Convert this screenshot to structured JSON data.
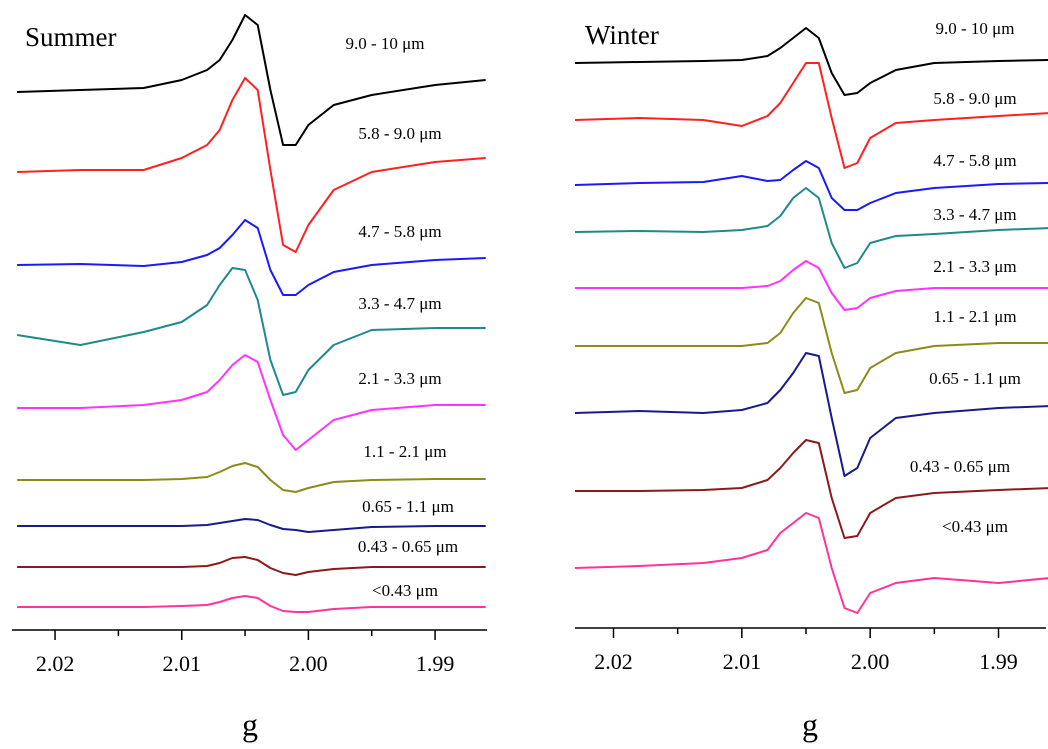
{
  "chart_data": [
    {
      "type": "line",
      "title": "Summer",
      "xlabel": "g",
      "x": [
        2.023,
        2.018,
        2.013,
        2.01,
        2.008,
        2.007,
        2.006,
        2.005,
        2.004,
        2.003,
        2.002,
        2.001,
        2.0,
        1.998,
        1.995,
        1.99,
        1.986
      ],
      "xlim": [
        2.0234,
        1.9859
      ],
      "xticks": [
        2.02,
        2.01,
        {
          "value": 2,
          "label": "2.00"
        },
        1.99
      ],
      "xminorticks": [
        2.015,
        2.005,
        1.995
      ],
      "ylim": [
        0,
        620
      ],
      "series": [
        {
          "name": "9.0 - 10 μm",
          "color": "#000000",
          "values": [
            538,
            540,
            542,
            550,
            560,
            570,
            590,
            615,
            605,
            540,
            485,
            485,
            505,
            525,
            535,
            545,
            550
          ]
        },
        {
          "name": "5.8 - 9.0 μm",
          "color": "#ff2020",
          "values": [
            458,
            460,
            460,
            472,
            485,
            500,
            530,
            552,
            540,
            460,
            385,
            378,
            405,
            440,
            458,
            468,
            472
          ]
        },
        {
          "name": "4.7 - 5.8 μm",
          "color": "#1a1aff",
          "values": [
            365,
            366,
            364,
            368,
            375,
            382,
            395,
            410,
            402,
            360,
            335,
            335,
            345,
            358,
            365,
            370,
            372
          ]
        },
        {
          "name": "3.3 - 4.7 μm",
          "color": "#1f8a8a",
          "values": [
            295,
            285,
            298,
            308,
            325,
            345,
            362,
            360,
            330,
            270,
            235,
            238,
            260,
            285,
            300,
            302,
            302
          ]
        },
        {
          "name": "2.1 - 3.3 μm",
          "color": "#ff33ff",
          "values": [
            222,
            222,
            225,
            230,
            238,
            250,
            265,
            275,
            268,
            230,
            195,
            180,
            190,
            210,
            220,
            225,
            225
          ]
        },
        {
          "name": "1.1 - 2.1 μm",
          "color": "#8b8b1a",
          "values": [
            150,
            150,
            150,
            151,
            153,
            158,
            164,
            167,
            163,
            150,
            140,
            138,
            142,
            148,
            150,
            151,
            151
          ]
        },
        {
          "name": "0.65 - 1.1 μm",
          "color": "#1a1a8b",
          "values": [
            104,
            104,
            104,
            104,
            105,
            107,
            109,
            111,
            110,
            105,
            101,
            100,
            98,
            100,
            103,
            104,
            104
          ]
        },
        {
          "name": "0.43 - 0.65 μm",
          "color": "#8b1a1a",
          "values": [
            63,
            63,
            63,
            63,
            64,
            67,
            72,
            73,
            70,
            62,
            57,
            55,
            58,
            61,
            63,
            63,
            63
          ]
        },
        {
          "name": "<0.43 μm",
          "color": "#ff3399",
          "values": [
            23,
            23,
            23,
            24,
            25,
            28,
            32,
            34,
            32,
            24,
            19,
            18,
            18,
            21,
            23,
            23,
            23
          ]
        }
      ]
    },
    {
      "type": "line",
      "title": "Winter",
      "xlabel": "g",
      "x": [
        2.023,
        2.018,
        2.013,
        2.01,
        2.008,
        2.007,
        2.006,
        2.005,
        2.004,
        2.003,
        2.002,
        2.001,
        2.0,
        1.998,
        1.995,
        1.99,
        1.986
      ],
      "xlim": [
        2.023,
        1.9863
      ],
      "xticks": [
        2.02,
        2.01,
        {
          "value": 2,
          "label": "2.00"
        },
        1.99
      ],
      "xminorticks": [
        2.015,
        2.005,
        1.995
      ],
      "ylim": [
        0,
        620
      ],
      "series": [
        {
          "name": "9.0 - 10 μm",
          "color": "#000000",
          "values": [
            565,
            566,
            567,
            568,
            572,
            580,
            590,
            600,
            590,
            555,
            533,
            535,
            545,
            558,
            565,
            567,
            568
          ]
        },
        {
          "name": "5.8 - 9.0 μm",
          "color": "#ff2020",
          "values": [
            508,
            510,
            508,
            502,
            512,
            525,
            545,
            565,
            565,
            510,
            460,
            465,
            490,
            505,
            508,
            512,
            515
          ]
        },
        {
          "name": "4.7 - 5.8 μm",
          "color": "#1a1aff",
          "values": [
            443,
            445,
            446,
            452,
            447,
            448,
            458,
            467,
            460,
            430,
            418,
            418,
            425,
            435,
            440,
            444,
            445
          ]
        },
        {
          "name": "3.3 - 4.7 μm",
          "color": "#1f8a8a",
          "values": [
            396,
            397,
            396,
            398,
            402,
            412,
            430,
            440,
            430,
            385,
            360,
            365,
            385,
            392,
            394,
            398,
            400
          ]
        },
        {
          "name": "2.1 - 3.3 μm",
          "color": "#ff33ff",
          "values": [
            340,
            340,
            340,
            340,
            342,
            347,
            358,
            367,
            360,
            335,
            318,
            320,
            330,
            337,
            340,
            340,
            340
          ]
        },
        {
          "name": "1.1 - 2.1 μm",
          "color": "#8b8b1a",
          "values": [
            282,
            282,
            282,
            282,
            285,
            295,
            315,
            330,
            325,
            275,
            235,
            238,
            260,
            275,
            282,
            285,
            285
          ]
        },
        {
          "name": "0.65 - 1.1 μm",
          "color": "#1a1a8b",
          "values": [
            215,
            217,
            215,
            218,
            225,
            238,
            255,
            275,
            272,
            210,
            152,
            160,
            190,
            210,
            215,
            220,
            222
          ]
        },
        {
          "name": "0.43 - 0.65 μm",
          "color": "#8b1a1a",
          "values": [
            137,
            137,
            138,
            140,
            148,
            160,
            175,
            188,
            185,
            130,
            90,
            92,
            115,
            130,
            135,
            138,
            140
          ]
        },
        {
          "name": "<0.43 μm",
          "color": "#ff3399",
          "values": [
            60,
            62,
            65,
            70,
            78,
            95,
            105,
            115,
            110,
            60,
            20,
            15,
            35,
            45,
            50,
            45,
            50
          ]
        }
      ]
    }
  ]
}
